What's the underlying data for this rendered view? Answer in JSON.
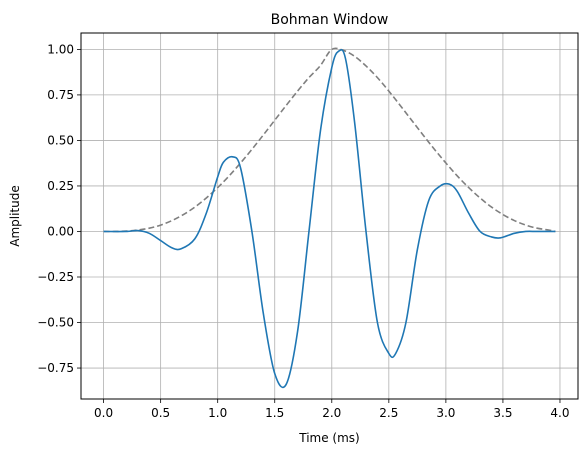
{
  "chart_data": {
    "type": "line",
    "title": "Bohman Window",
    "xlabel": "Time (ms)",
    "ylabel": "Amplitude",
    "xlim": [
      -0.198,
      4.158
    ],
    "ylim": [
      -0.92,
      1.09
    ],
    "xticks": [
      0.0,
      0.5,
      1.0,
      1.5,
      2.0,
      2.5,
      3.0,
      3.5,
      4.0
    ],
    "xtick_labels": [
      "0.0",
      "0.5",
      "1.0",
      "1.5",
      "2.0",
      "2.5",
      "3.0",
      "3.5",
      "4.0"
    ],
    "yticks": [
      -0.75,
      -0.5,
      -0.25,
      0.0,
      0.25,
      0.5,
      0.75,
      1.0
    ],
    "ytick_labels": [
      "−0.75",
      "−0.50",
      "−0.25",
      "0.00",
      "0.25",
      "0.50",
      "0.75",
      "1.00"
    ],
    "grid": true,
    "series": [
      {
        "style": "dashed",
        "color": "#7f7f7f",
        "x": [
          0.0,
          0.1,
          0.2,
          0.3,
          0.4,
          0.5,
          0.6,
          0.7,
          0.8,
          0.9,
          1.0,
          1.1,
          1.2,
          1.3,
          1.4,
          1.5,
          1.6,
          1.7,
          1.8,
          1.9,
          2.0,
          2.1,
          2.2,
          2.3,
          2.4,
          2.5,
          2.6,
          2.7,
          2.8,
          2.9,
          3.0,
          3.1,
          3.2,
          3.3,
          3.4,
          3.5,
          3.6,
          3.7,
          3.8,
          3.9,
          3.96
        ],
        "y": [
          0.0,
          0.0,
          0.002,
          0.008,
          0.018,
          0.035,
          0.06,
          0.093,
          0.134,
          0.184,
          0.241,
          0.305,
          0.376,
          0.451,
          0.53,
          0.611,
          0.692,
          0.771,
          0.845,
          0.911,
          1.0,
          0.995,
          0.962,
          0.909,
          0.845,
          0.771,
          0.692,
          0.611,
          0.53,
          0.451,
          0.376,
          0.305,
          0.241,
          0.184,
          0.134,
          0.093,
          0.06,
          0.035,
          0.018,
          0.008,
          0.0
        ]
      },
      {
        "style": "solid",
        "color": "#1f77b4",
        "x": [
          0.0,
          0.2,
          0.3,
          0.4,
          0.5,
          0.6,
          0.68,
          0.8,
          0.9,
          1.0,
          1.05,
          1.13,
          1.2,
          1.3,
          1.4,
          1.5,
          1.6,
          1.7,
          1.8,
          1.9,
          2.0,
          2.06,
          2.12,
          2.2,
          2.3,
          2.4,
          2.5,
          2.56,
          2.65,
          2.75,
          2.85,
          2.95,
          3.03,
          3.1,
          3.2,
          3.3,
          3.4,
          3.48,
          3.6,
          3.7,
          3.8,
          3.96
        ],
        "y": [
          0.0,
          0.0,
          0.005,
          -0.01,
          -0.05,
          -0.09,
          -0.095,
          -0.04,
          0.1,
          0.3,
          0.38,
          0.41,
          0.35,
          0.0,
          -0.45,
          -0.78,
          -0.84,
          -0.55,
          0.0,
          0.55,
          0.9,
          0.99,
          0.95,
          0.6,
          0.0,
          -0.5,
          -0.67,
          -0.67,
          -0.5,
          -0.1,
          0.17,
          0.25,
          0.26,
          0.22,
          0.1,
          0.0,
          -0.03,
          -0.035,
          -0.01,
          0.0,
          0.0,
          0.0
        ]
      }
    ]
  }
}
